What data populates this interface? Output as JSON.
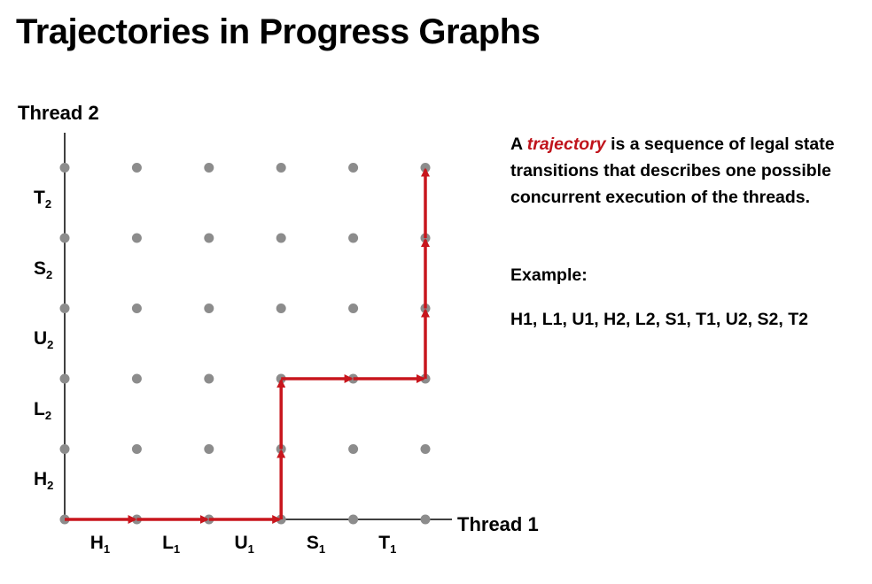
{
  "title": "Trajectories in Progress Graphs",
  "y_axis_title": "Thread 2",
  "x_axis_title": "Thread 1",
  "x_labels": [
    {
      "base": "H",
      "sub": "1"
    },
    {
      "base": "L",
      "sub": "1"
    },
    {
      "base": "U",
      "sub": "1"
    },
    {
      "base": "S",
      "sub": "1"
    },
    {
      "base": "T",
      "sub": "1"
    }
  ],
  "y_labels": [
    {
      "base": "H",
      "sub": "2"
    },
    {
      "base": "L",
      "sub": "2"
    },
    {
      "base": "U",
      "sub": "2"
    },
    {
      "base": "S",
      "sub": "2"
    },
    {
      "base": "T",
      "sub": "2"
    }
  ],
  "description": {
    "prefix": "A ",
    "emphasis": "trajectory",
    "suffix": " is a sequence of legal state transitions that describes one possible concurrent execution of the threads."
  },
  "example_title": "Example:",
  "example_sequence": "H1, L1, U1, H2, L2,  S1, T1, U2, S2, T2",
  "trajectory": [
    [
      0,
      0
    ],
    [
      1,
      0
    ],
    [
      2,
      0
    ],
    [
      3,
      0
    ],
    [
      3,
      1
    ],
    [
      3,
      2
    ],
    [
      4,
      2
    ],
    [
      5,
      2
    ],
    [
      5,
      3
    ],
    [
      5,
      4
    ],
    [
      5,
      5
    ]
  ],
  "colors": {
    "trajectory": "#c8161d",
    "grid_point": "#8c8c8c",
    "axis": "#000000",
    "emphasis": "#c0141c"
  }
}
